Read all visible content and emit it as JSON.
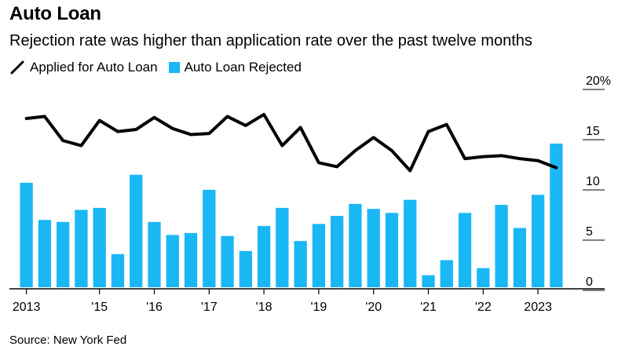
{
  "title": "Auto Loan",
  "subtitle": "Rejection rate was higher than application rate over the past twelve months",
  "source": "Source: New York Fed",
  "legend": {
    "line_label": "Applied for Auto Loan",
    "bar_label": "Auto Loan Rejected"
  },
  "colors": {
    "bar": "#1ab7f5",
    "line": "#000000",
    "axis": "#000000"
  },
  "chart_data": {
    "type": "bar",
    "series": [
      {
        "name": "Auto Loan Rejected",
        "type": "bar",
        "values": [
          10.4,
          6.7,
          6.5,
          7.7,
          7.9,
          3.3,
          11.2,
          6.5,
          5.2,
          5.4,
          9.7,
          5.1,
          3.6,
          6.1,
          7.9,
          4.6,
          6.3,
          7.1,
          8.3,
          7.8,
          7.4,
          8.7,
          1.2,
          2.7,
          7.4,
          1.9,
          8.2,
          5.9,
          9.2,
          14.3
        ]
      },
      {
        "name": "Applied for Auto Loan",
        "type": "line",
        "values": [
          16.8,
          17.0,
          14.6,
          14.1,
          16.6,
          15.5,
          15.7,
          16.9,
          15.8,
          15.2,
          15.3,
          17.0,
          16.1,
          17.2,
          14.1,
          15.9,
          12.4,
          12.0,
          13.6,
          14.9,
          13.6,
          11.6,
          15.5,
          16.2,
          12.8,
          13.0,
          13.1,
          12.8,
          12.6,
          11.9
        ]
      }
    ],
    "x_ticks": [
      {
        "index": 0,
        "label": "2013"
      },
      {
        "index": 4,
        "label": "'15"
      },
      {
        "index": 7,
        "label": "'16"
      },
      {
        "index": 10,
        "label": "'17"
      },
      {
        "index": 13,
        "label": "'18"
      },
      {
        "index": 16,
        "label": "'19"
      },
      {
        "index": 19,
        "label": "'20"
      },
      {
        "index": 22,
        "label": "'21"
      },
      {
        "index": 25,
        "label": "'22"
      },
      {
        "index": 28,
        "label": "2023"
      }
    ],
    "y_ticks": [
      {
        "value": 20,
        "label": "20%"
      },
      {
        "value": 15,
        "label": "15"
      },
      {
        "value": 10,
        "label": "10"
      },
      {
        "value": 5,
        "label": "5"
      },
      {
        "value": 0,
        "label": "0"
      }
    ],
    "ylim": [
      0,
      20
    ],
    "y_axis_side": "right",
    "grid": false
  }
}
